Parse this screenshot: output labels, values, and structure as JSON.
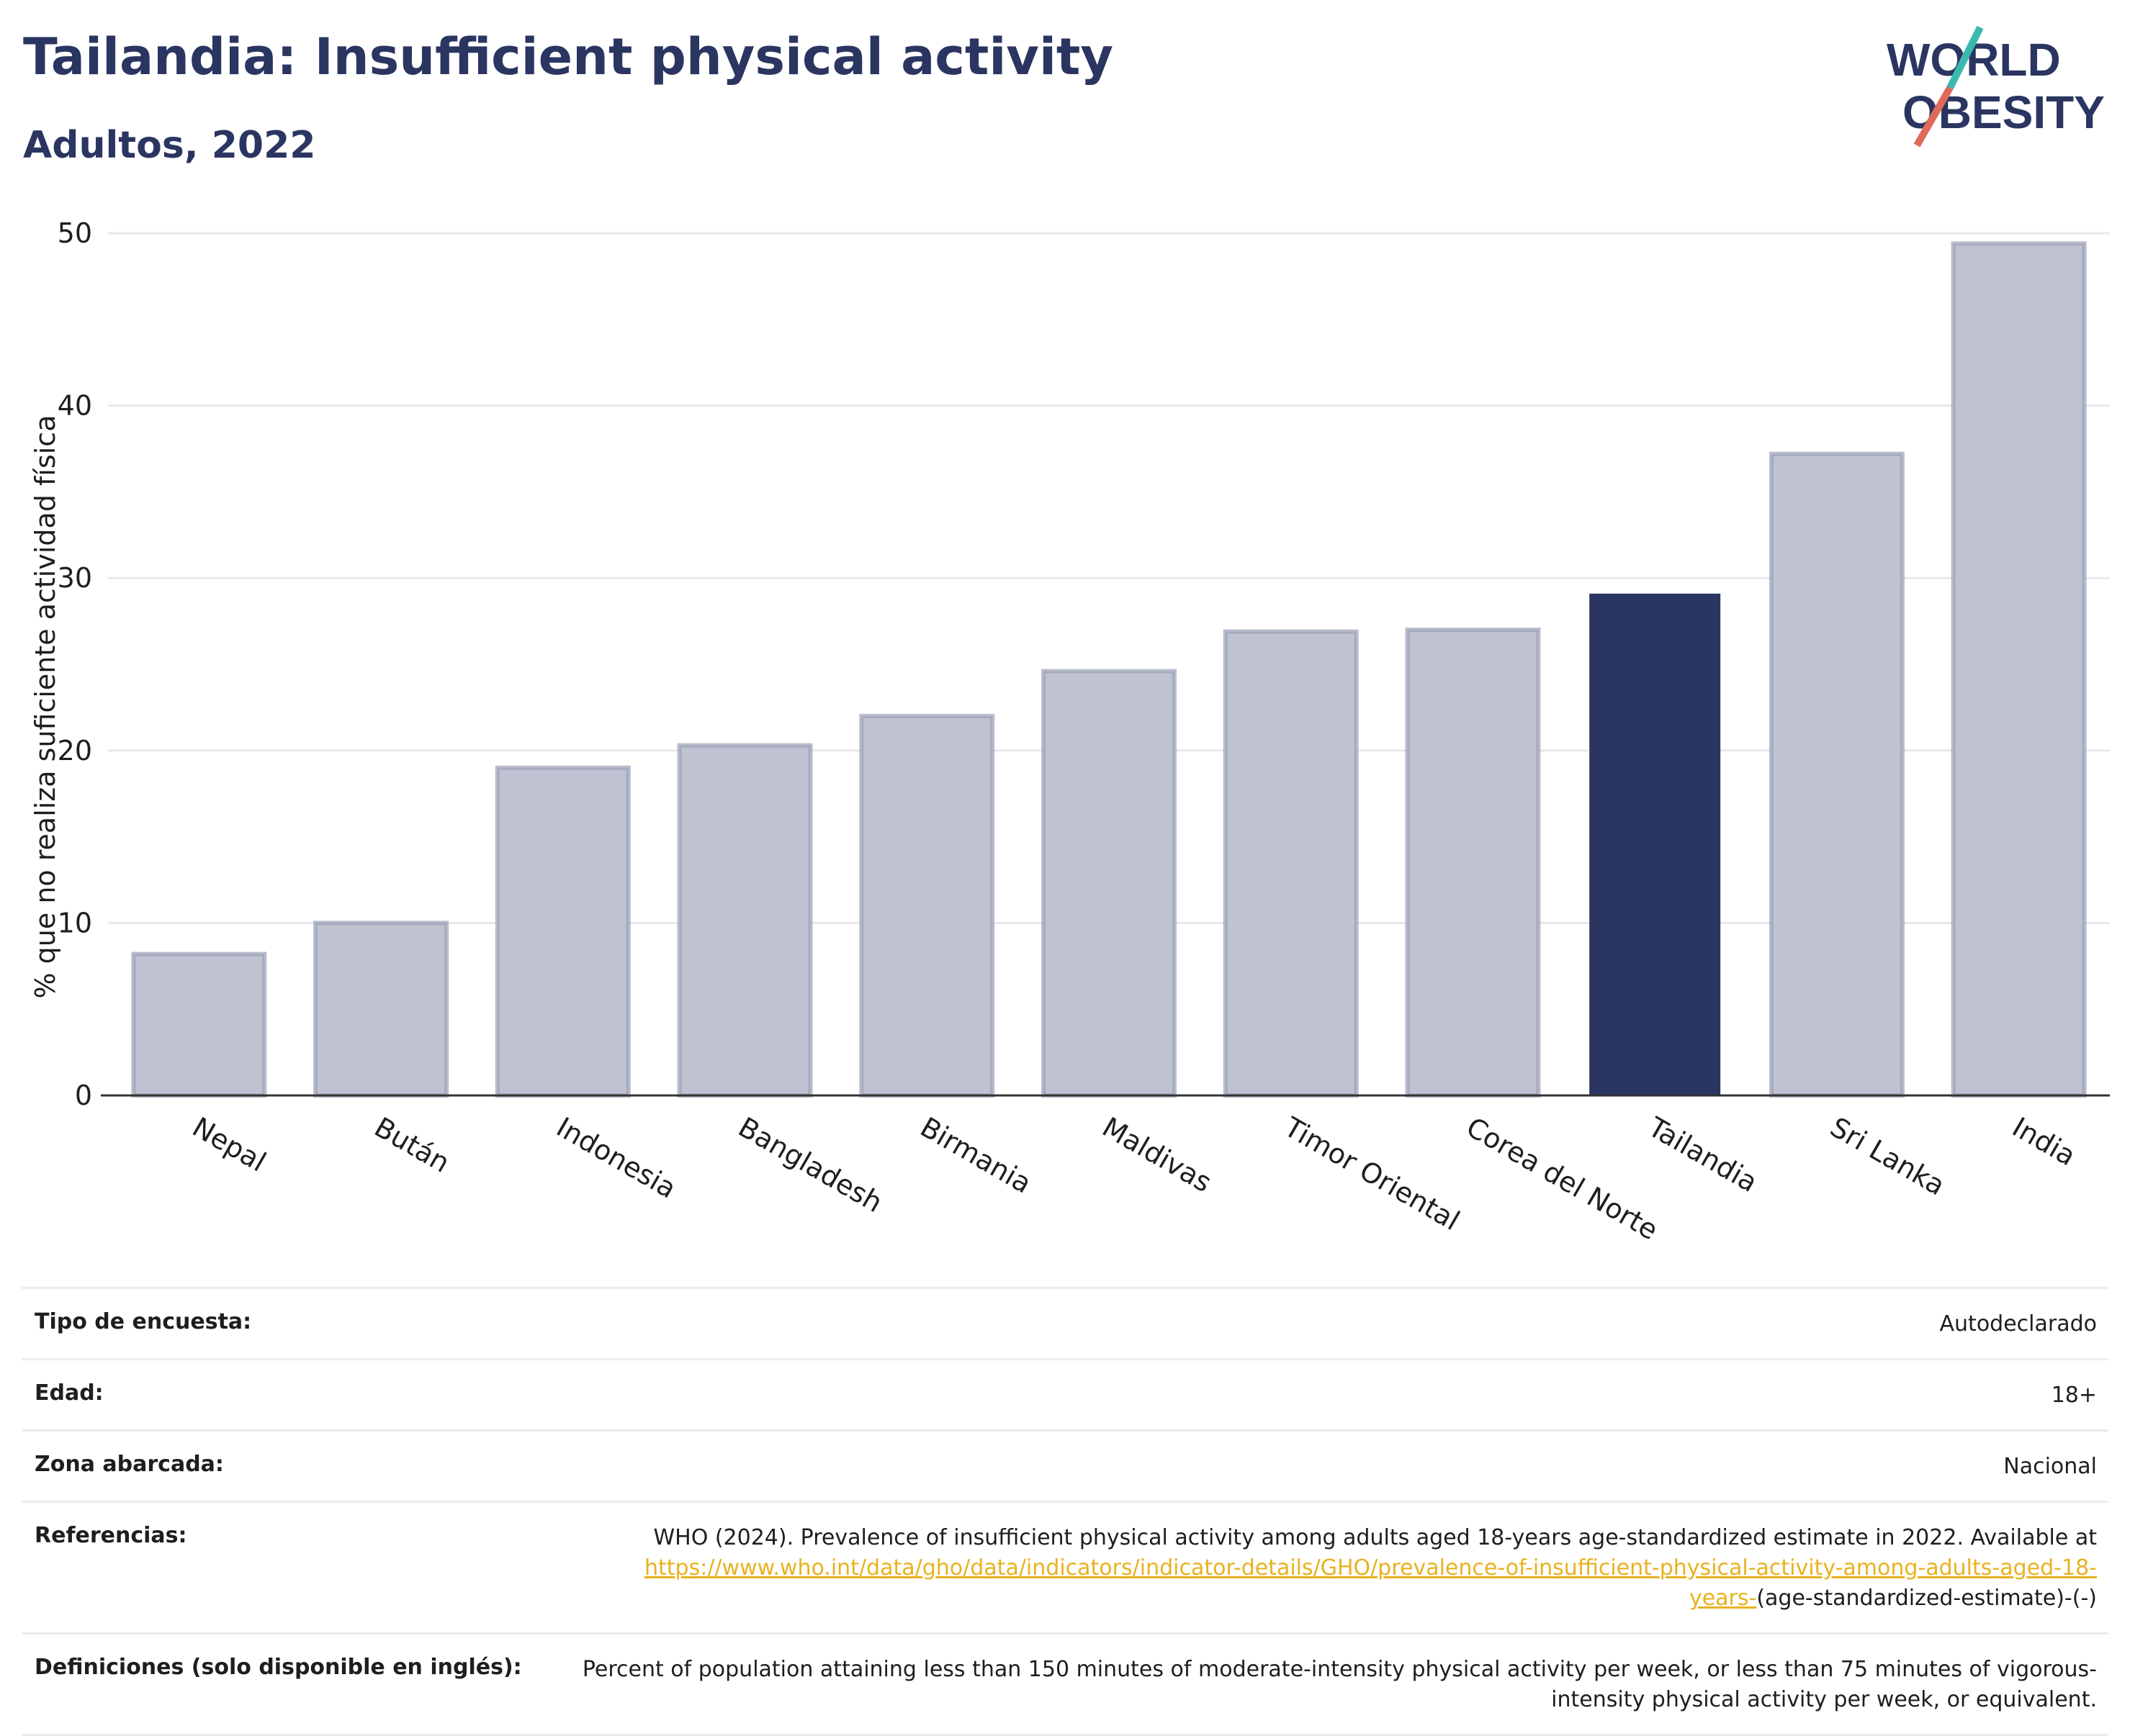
{
  "header": {
    "title": "Tailandia: Insufficient physical activity",
    "subtitle": "Adultos, 2022",
    "logo": {
      "line1": "WORLD",
      "line2": "OBESITY"
    }
  },
  "colors": {
    "highlight": "#2b3561",
    "bar": "#bfc3d1",
    "bar_stroke": "#9aa0b6",
    "grid": "#e8e8ec",
    "link": "#e8b21f"
  },
  "chart_data": {
    "type": "bar",
    "title": "Tailandia: Insufficient physical activity",
    "subtitle": "Adultos, 2022",
    "xlabel": "",
    "ylabel": "% que no realiza suficiente actividad física",
    "ylim": [
      0,
      50
    ],
    "yticks": [
      0,
      10,
      20,
      30,
      40,
      50
    ],
    "grid": true,
    "highlight_category": "Tailandia",
    "categories": [
      "Nepal",
      "Bután",
      "Indonesia",
      "Bangladesh",
      "Birmania",
      "Maldivas",
      "Timor Oriental",
      "Corea del Norte",
      "Tailandia",
      "Sri Lanka",
      "India"
    ],
    "values": [
      8.2,
      10.0,
      19.0,
      20.3,
      22.0,
      24.6,
      26.9,
      27.0,
      29.1,
      37.2,
      49.4
    ]
  },
  "meta": {
    "survey_type": {
      "label": "Tipo de encuesta:",
      "value": "Autodeclarado"
    },
    "age": {
      "label": "Edad:",
      "value": "18+"
    },
    "area": {
      "label": "Zona abarcada:",
      "value": "Nacional"
    },
    "references": {
      "label": "Referencias:",
      "text": "WHO (2024). Prevalence of insufficient physical activity among adults aged 18-years age-standardized estimate in 2022. Available at",
      "link": "https://www.who.int/data/gho/data/indicators/indicator-details/GHO/prevalence-of-insufficient-physical-activity-among-adults-aged-18-years-",
      "suffix": "(age-standardized-estimate)-(-)"
    },
    "definitions": {
      "label": "Definiciones (solo disponible en inglés):",
      "value": "Percent of population attaining less than 150 minutes of moderate-intensity physical activity per week, or less than 75 minutes of vigorous-intensity physical activity per week, or equivalent."
    }
  }
}
